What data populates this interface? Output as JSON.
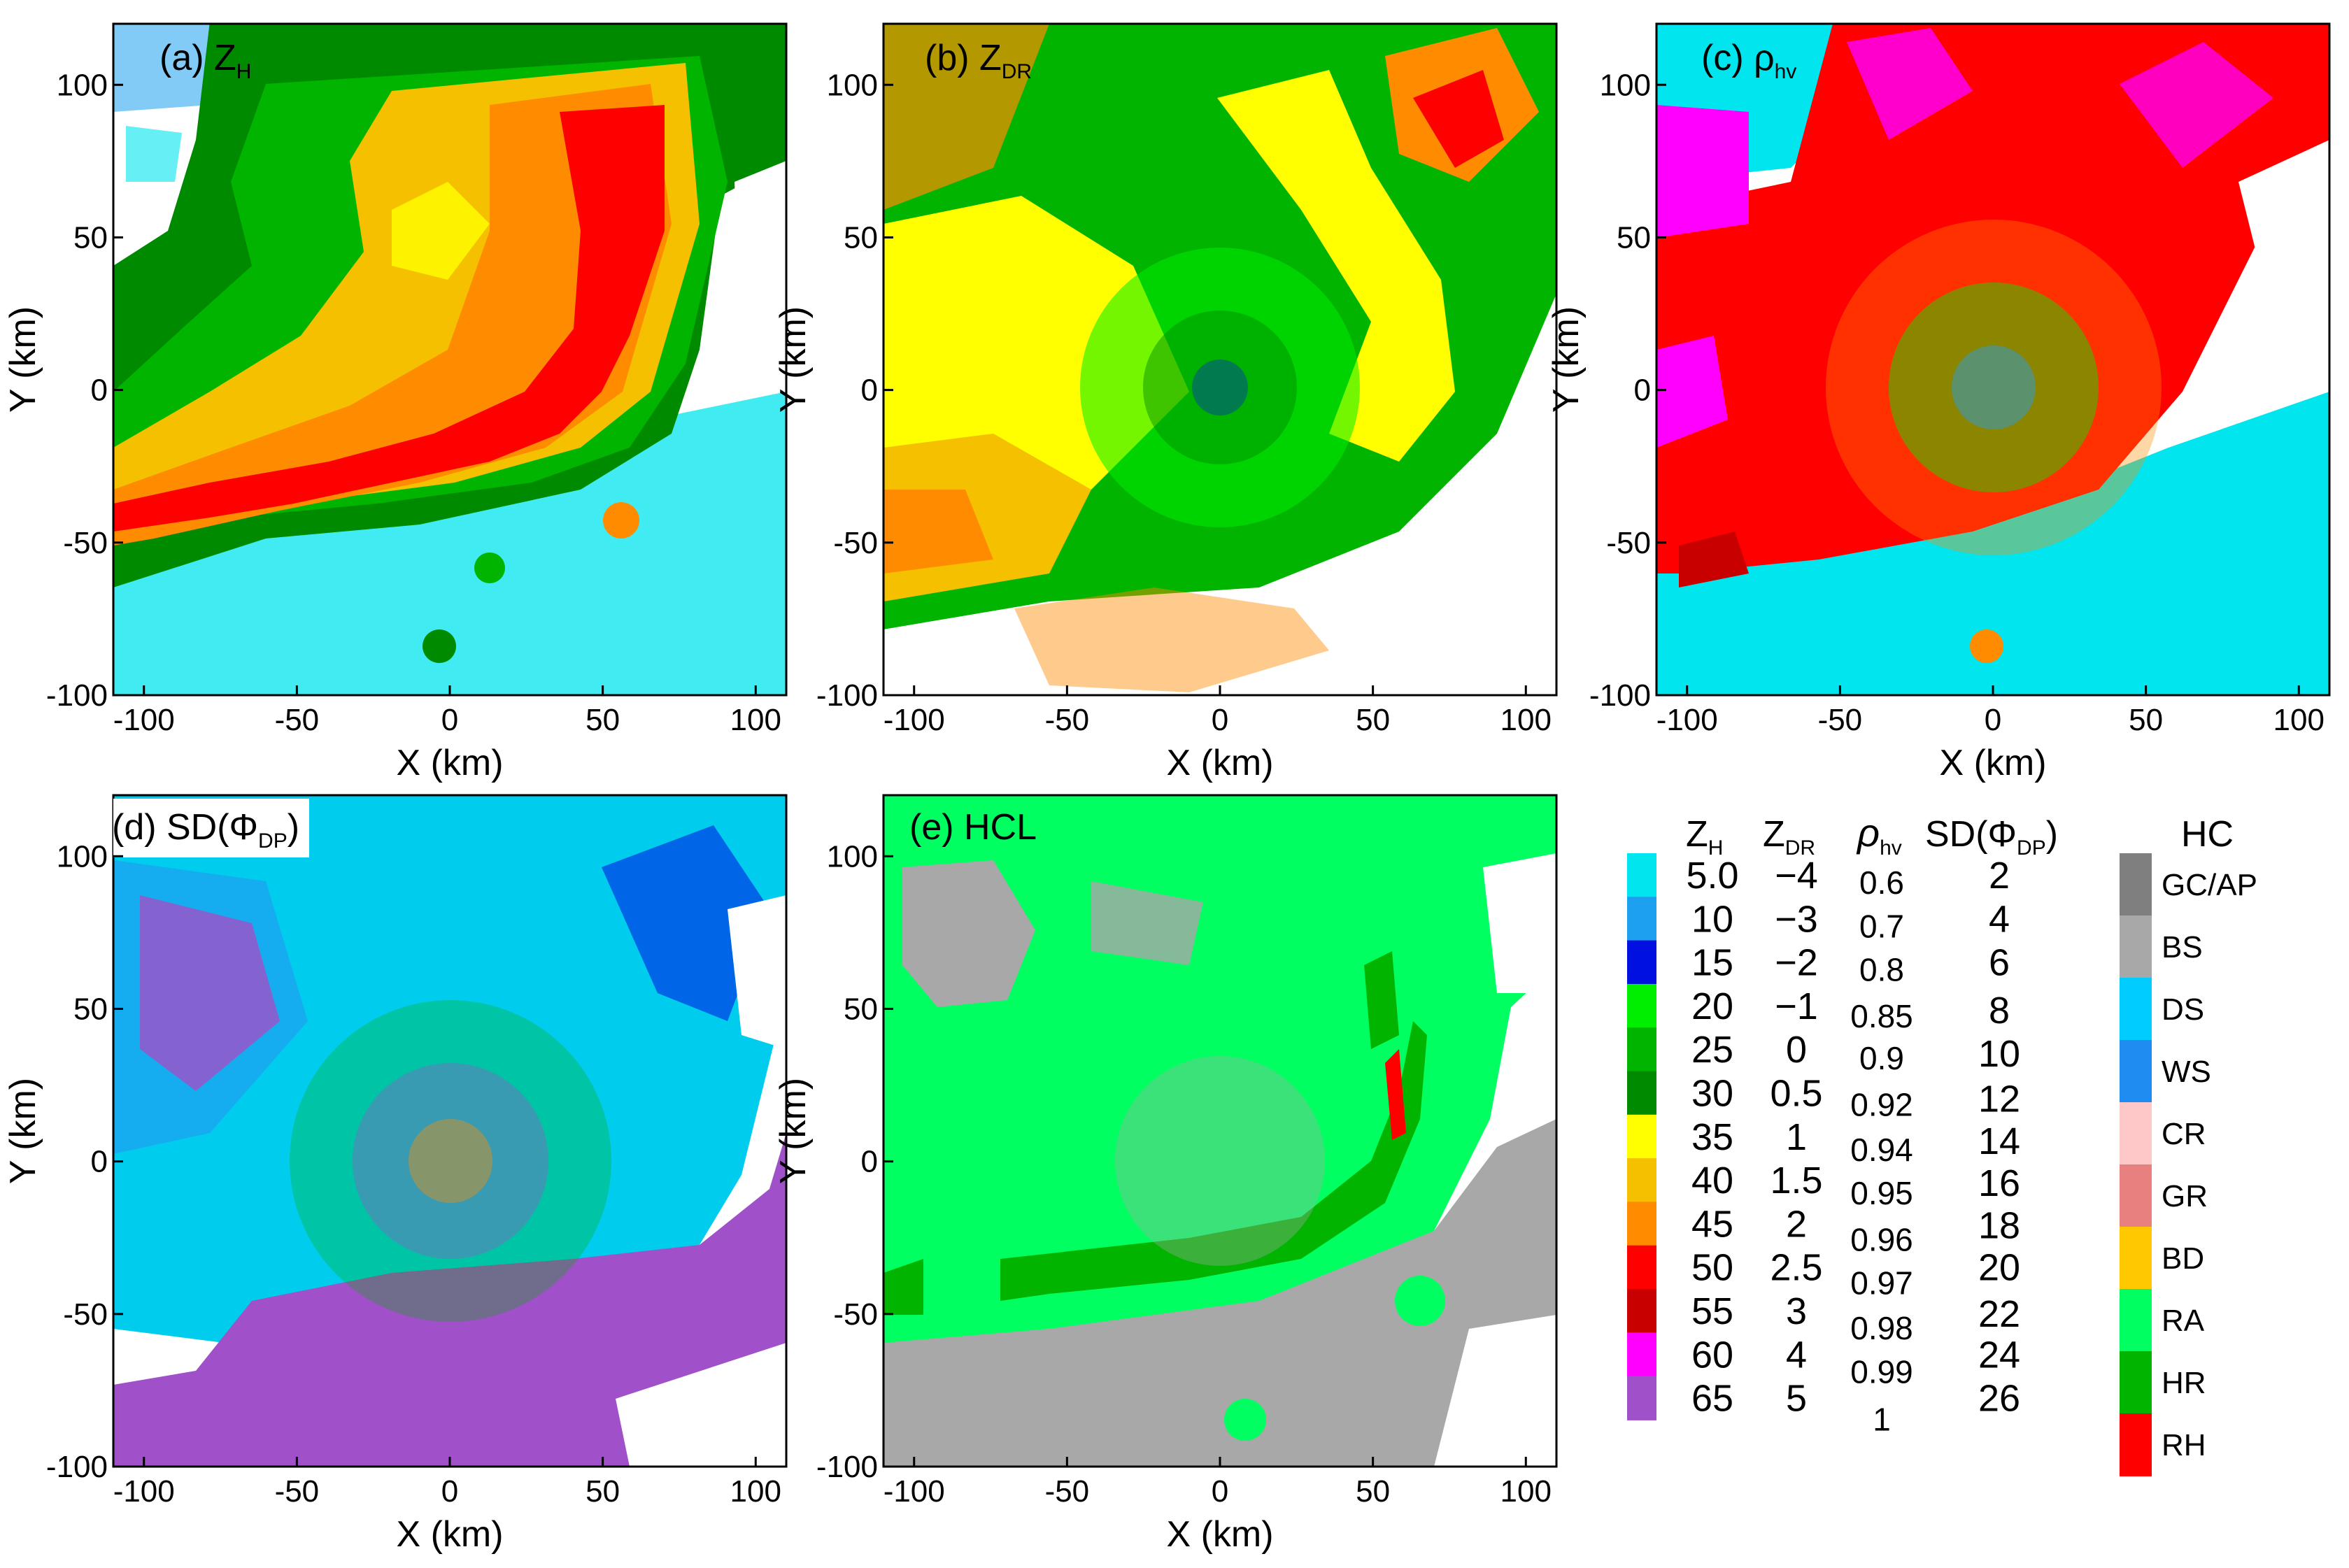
{
  "chart_data": {
    "type": "heatmap",
    "description_units": "PPI radar fields, horizontal distance in km",
    "panels": [
      {
        "id": "a",
        "label": "(a) Z",
        "sub": "H",
        "field": "ZH",
        "xlabel": "X (km)",
        "ylabel": "Y (km)",
        "xlim": [
          -110,
          110
        ],
        "ylim": [
          -100,
          120
        ]
      },
      {
        "id": "b",
        "label": "(b) Z",
        "sub": "DR",
        "field": "ZDR",
        "xlabel": "X (km)",
        "ylabel": "Y (km)",
        "xlim": [
          -110,
          110
        ],
        "ylim": [
          -100,
          120
        ]
      },
      {
        "id": "c",
        "label": "(c) ρ",
        "sub": "hv",
        "field": "RHOHV",
        "xlabel": "X (km)",
        "ylabel": "Y (km)",
        "xlim": [
          -110,
          110
        ],
        "ylim": [
          -100,
          120
        ]
      },
      {
        "id": "d",
        "label": "(d) SD(Φ",
        "sub": "DP",
        "tail": ")",
        "field": "SDPHI",
        "xlabel": "X (km)",
        "ylabel": "Y (km)",
        "xlim": [
          -110,
          110
        ],
        "ylim": [
          -100,
          120
        ]
      },
      {
        "id": "e",
        "label": "(e) HCL",
        "sub": "",
        "field": "HCL",
        "xlabel": "X (km)",
        "ylabel": "Y (km)",
        "xlim": [
          -110,
          110
        ],
        "ylim": [
          -100,
          120
        ]
      }
    ],
    "xticks": [
      "-100",
      "-50",
      "0",
      "50",
      "100"
    ],
    "xtick_values": [
      -100,
      -50,
      0,
      50,
      100
    ],
    "yticks": [
      "-100",
      "-50",
      "0",
      "50",
      "100"
    ],
    "ytick_values": [
      -100,
      -50,
      0,
      50,
      100
    ],
    "colorbar": {
      "headers": [
        {
          "main": "Z",
          "sub": "H"
        },
        {
          "main": "Z",
          "sub": "DR"
        },
        {
          "main": "ρ",
          "sub": "hv"
        },
        {
          "main": "SD(Φ",
          "sub": "DP",
          "tail": ")"
        }
      ],
      "colors": [
        "#00e5ee",
        "#1ea0f0",
        "#0010e0",
        "#00ee00",
        "#00b400",
        "#008a00",
        "#ffff00",
        "#f5c000",
        "#ff8c00",
        "#ff0000",
        "#c80000",
        "#ff00ff",
        "#a050c8"
      ],
      "ZH": [
        "5.0",
        "10",
        "15",
        "20",
        "25",
        "30",
        "35",
        "40",
        "45",
        "50",
        "55",
        "60",
        "65"
      ],
      "ZDR": [
        "−4",
        "−3",
        "−2",
        "−1",
        "0",
        "0.5",
        "1",
        "1.5",
        "2",
        "2.5",
        "3",
        "4",
        "5"
      ],
      "RHOHV": [
        "0.6",
        "0.7",
        "0.8",
        "0.85",
        "0.9",
        "0.92",
        "0.94",
        "0.95",
        "0.96",
        "0.97",
        "0.98",
        "0.99",
        "1"
      ],
      "SDPHI": [
        "2",
        "4",
        "6",
        "8",
        "10",
        "12",
        "14",
        "16",
        "18",
        "20",
        "22",
        "24",
        "26"
      ]
    },
    "hc_legend": {
      "title": "HC",
      "classes": [
        {
          "name": "GC/AP",
          "color": "#7f7f7f"
        },
        {
          "name": "BS",
          "color": "#a8a8a8"
        },
        {
          "name": "DS",
          "color": "#00ccff"
        },
        {
          "name": "WS",
          "color": "#1e8cf0"
        },
        {
          "name": "CR",
          "color": "#ffc8c8"
        },
        {
          "name": "GR",
          "color": "#e88080"
        },
        {
          "name": "BD",
          "color": "#ffc800"
        },
        {
          "name": "RA",
          "color": "#00ff60"
        },
        {
          "name": "HR",
          "color": "#00b400"
        },
        {
          "name": "RH",
          "color": "#ff0000"
        }
      ]
    }
  }
}
